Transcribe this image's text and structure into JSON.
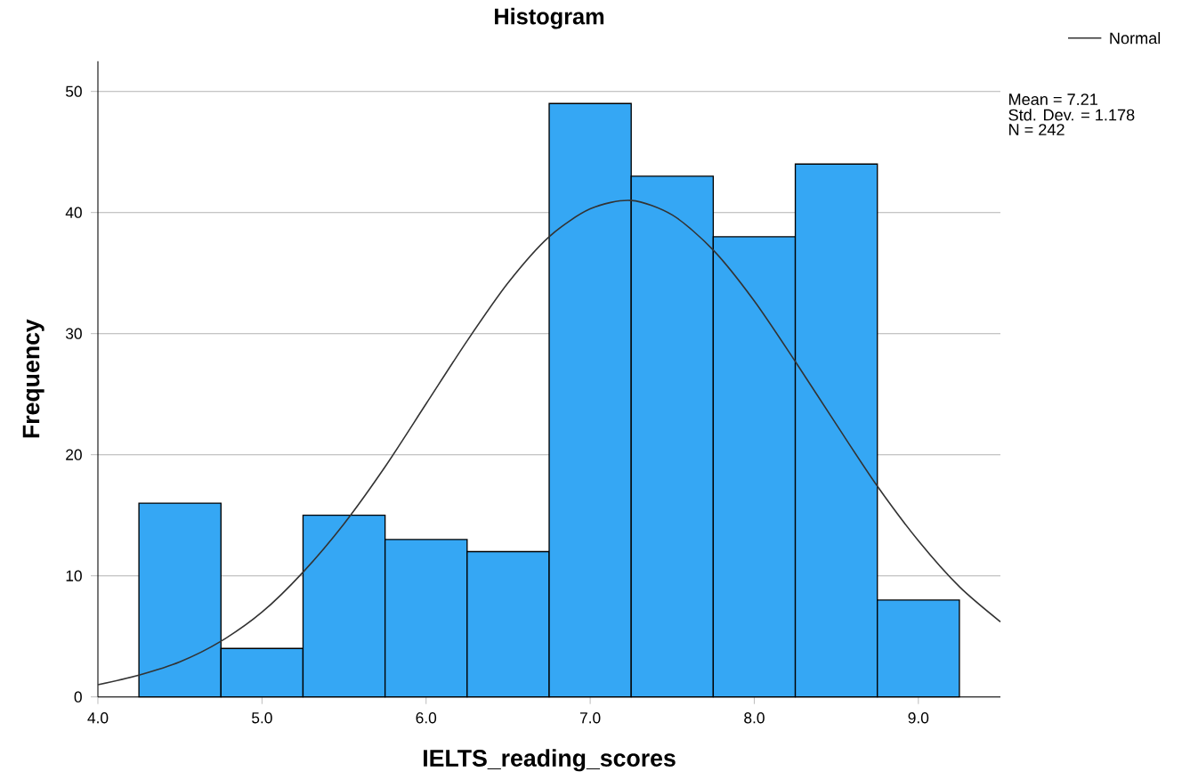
{
  "chart_data": {
    "type": "histogram",
    "title": "Histogram",
    "xlabel": "IELTS_reading_scores",
    "ylabel": "Frequency",
    "bins": [
      4.25,
      4.75,
      5.25,
      5.75,
      6.25,
      6.75,
      7.25,
      7.75,
      8.25,
      8.75,
      9.25
    ],
    "values": [
      16,
      4,
      15,
      13,
      12,
      49,
      43,
      38,
      44,
      8
    ],
    "color": "#35a7f4",
    "series": [
      {
        "type": "line",
        "name": "Normal",
        "color": "#333333",
        "x": [
          4.0,
          4.25,
          4.5,
          4.75,
          5.0,
          5.25,
          5.5,
          5.75,
          6.0,
          6.25,
          6.5,
          6.75,
          7.0,
          7.25,
          7.5,
          7.75,
          8.0,
          8.25,
          8.5,
          8.75,
          9.0,
          9.25,
          9.5
        ],
        "values": [
          1.0,
          1.8,
          2.9,
          4.6,
          7.0,
          10.3,
          14.3,
          19.0,
          24.2,
          29.4,
          34.2,
          38.0,
          40.3,
          41.0,
          39.8,
          36.9,
          32.7,
          27.7,
          22.5,
          17.4,
          12.9,
          9.1,
          6.2
        ]
      }
    ],
    "annotations": [
      "Mean = 7.21",
      "Std. Dev. = 1.178",
      "N = 242"
    ],
    "xlim": [
      4.0,
      9.5
    ],
    "ylim": [
      0,
      52.5
    ],
    "xticks": [
      {
        "value": 4,
        "label": "4.0"
      },
      {
        "value": 5,
        "label": "5.0"
      },
      {
        "value": 6,
        "label": "6.0"
      },
      {
        "value": 7,
        "label": "7.0"
      },
      {
        "value": 8,
        "label": "8.0"
      },
      {
        "value": 9,
        "label": "9.0"
      }
    ],
    "yticks": [
      0,
      10,
      20,
      30,
      40,
      50
    ],
    "grid": "y",
    "legend": "top right"
  }
}
